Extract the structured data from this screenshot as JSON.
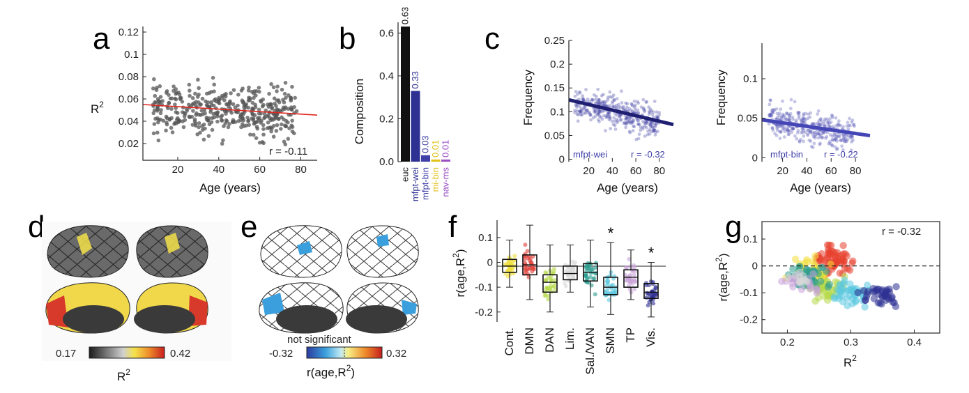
{
  "panels": {
    "a": "a",
    "b": "b",
    "c": "c",
    "d": "d",
    "e": "e",
    "f": "f",
    "g": "g"
  },
  "colors": {
    "euc": "#111111",
    "mfpt_wei": "#2e3192",
    "mfpt_bin": "#3b3ba6",
    "mi_bin": "#e0c21a",
    "nav_ms": "#9b4fc4",
    "fit_red": "#e0261f",
    "wei_line": "#1f1f72",
    "bin_line": "#4446b6"
  },
  "chart_data": [
    {
      "id": "a",
      "type": "scatter",
      "xlabel": "Age (years)",
      "ylabel": "R",
      "ylabel_sup": "2",
      "xlim": [
        3,
        88
      ],
      "ylim": [
        0.005,
        0.125
      ],
      "xticks": [
        "20",
        "40",
        "60",
        "80"
      ],
      "xtick_values": [
        20,
        40,
        60,
        80
      ],
      "yticks": [
        "0.02",
        "0.04",
        "0.06",
        "0.08",
        "0.1",
        "0.12"
      ],
      "ytick_values": [
        0.02,
        0.04,
        0.06,
        0.08,
        0.1,
        0.12
      ],
      "annotation": "r = -0.11",
      "fit": {
        "x": [
          3,
          88
        ],
        "y": [
          0.055,
          0.0455
        ]
      }
    },
    {
      "id": "b",
      "type": "bar",
      "ylabel": "Composition",
      "ylim": [
        0,
        0.65
      ],
      "yticks": [
        "0.0",
        "0.2",
        "0.4",
        "0.6"
      ],
      "ytick_values": [
        0,
        0.2,
        0.4,
        0.6
      ],
      "categories": [
        "euc",
        "mfpt-wei",
        "mfpt-bin",
        "mi-bin",
        "nav-ms"
      ],
      "values": [
        0.63,
        0.33,
        0.03,
        0.01,
        0.01
      ],
      "value_labels": [
        "0.63",
        "0.33",
        "0.03",
        "0.01",
        "0.01"
      ],
      "bar_colors": [
        "#111111",
        "#2e3192",
        "#3f3fa8",
        "#e0c21a",
        "#9b4fc4"
      ]
    },
    {
      "id": "c1",
      "type": "scatter",
      "xlabel": "Age (years)",
      "ylabel": "Frequency",
      "xlim": [
        3,
        92
      ],
      "ylim": [
        -0.005,
        0.25
      ],
      "xticks": [
        "20",
        "40",
        "60",
        "80"
      ],
      "xtick_values": [
        20,
        40,
        60,
        80
      ],
      "yticks": [
        "0",
        "0.05",
        "0.1",
        "0.15",
        "0.2",
        "0.25"
      ],
      "ytick_values": [
        0,
        0.05,
        0.1,
        0.15,
        0.2,
        0.25
      ],
      "legend": "mfpt-wei",
      "annotation": "r = -0.32",
      "fit": {
        "x": [
          3,
          92
        ],
        "y": [
          0.125,
          0.073
        ]
      }
    },
    {
      "id": "c2",
      "type": "scatter",
      "xlabel": "Age (years)",
      "ylabel": "Frequency",
      "xlim": [
        3,
        92
      ],
      "ylim": [
        -0.005,
        0.145
      ],
      "xticks": [
        "20",
        "40",
        "60",
        "80"
      ],
      "xtick_values": [
        20,
        40,
        60,
        80
      ],
      "yticks": [
        "0",
        "0.05",
        "0.1"
      ],
      "ytick_values": [
        0,
        0.05,
        0.1
      ],
      "legend": "mfpt-bin",
      "annotation": "r = -0.22",
      "fit": {
        "x": [
          3,
          92
        ],
        "y": [
          0.048,
          0.028
        ]
      }
    },
    {
      "id": "d",
      "type": "heatmap",
      "colorbar_min": "0.17",
      "colorbar_max": "0.42",
      "colorbar_label": "R",
      "colorbar_label_sup": "2"
    },
    {
      "id": "e",
      "type": "heatmap",
      "colorbar_min": "-0.32",
      "colorbar_max": "0.32",
      "colorbar_note": "not significant",
      "colorbar_label": "r(age,R",
      "colorbar_label_sup": "2",
      "colorbar_label_end": ")"
    },
    {
      "id": "f",
      "type": "box",
      "ylabel": "r(age,R",
      "ylabel_sup": "2",
      "ylabel_end": ")",
      "ylim": [
        -0.24,
        0.17
      ],
      "yticks": [
        "0.1",
        "0",
        "-0.1",
        "-0.2"
      ],
      "ytick_values": [
        0.1,
        0,
        -0.1,
        -0.2
      ],
      "categories": [
        "Cont.",
        "DMN",
        "DAN",
        "Lim.",
        "Sal./VAN",
        "SMN",
        "TP",
        "Vis."
      ],
      "significance": [
        "",
        "",
        "",
        "",
        "",
        "*",
        "",
        "*"
      ],
      "box_colors": [
        "#f0e03c",
        "#e0413a",
        "#b6d94a",
        "#d8d8d8",
        "#2a9d8f",
        "#5bc8e0",
        "#c9a4d8",
        "#2e3192"
      ],
      "boxes": [
        {
          "q1": -0.04,
          "median": -0.015,
          "q3": 0.012,
          "wlo": -0.1,
          "whi": 0.09
        },
        {
          "q1": -0.05,
          "median": -0.01,
          "q3": 0.03,
          "wlo": -0.15,
          "whi": 0.15
        },
        {
          "q1": -0.12,
          "median": -0.08,
          "q3": -0.05,
          "wlo": -0.2,
          "whi": 0.07
        },
        {
          "q1": -0.07,
          "median": -0.045,
          "q3": -0.015,
          "wlo": -0.12,
          "whi": 0.07
        },
        {
          "q1": -0.075,
          "median": -0.04,
          "q3": -0.005,
          "wlo": -0.18,
          "whi": 0.09
        },
        {
          "q1": -0.13,
          "median": -0.1,
          "q3": -0.06,
          "wlo": -0.21,
          "whi": 0.08
        },
        {
          "q1": -0.1,
          "median": -0.06,
          "q3": -0.03,
          "wlo": -0.15,
          "whi": 0.05
        },
        {
          "q1": -0.145,
          "median": -0.12,
          "q3": -0.085,
          "wlo": -0.22,
          "whi": 0.0
        }
      ]
    },
    {
      "id": "g",
      "type": "scatter",
      "xlabel": "R",
      "xlabel_sup": "2",
      "ylabel": "r(age,R",
      "ylabel_sup": "2",
      "ylabel_end": ")",
      "xlim": [
        0.16,
        0.44
      ],
      "ylim": [
        -0.25,
        0.165
      ],
      "xticks": [
        "0.2",
        "0.3",
        "0.4"
      ],
      "xtick_values": [
        0.2,
        0.3,
        0.4
      ],
      "yticks": [
        "0.1",
        "0",
        "-0.1",
        "-0.2"
      ],
      "ytick_values": [
        0.1,
        0,
        -0.1,
        -0.2
      ],
      "annotation": "r = -0.32"
    }
  ]
}
